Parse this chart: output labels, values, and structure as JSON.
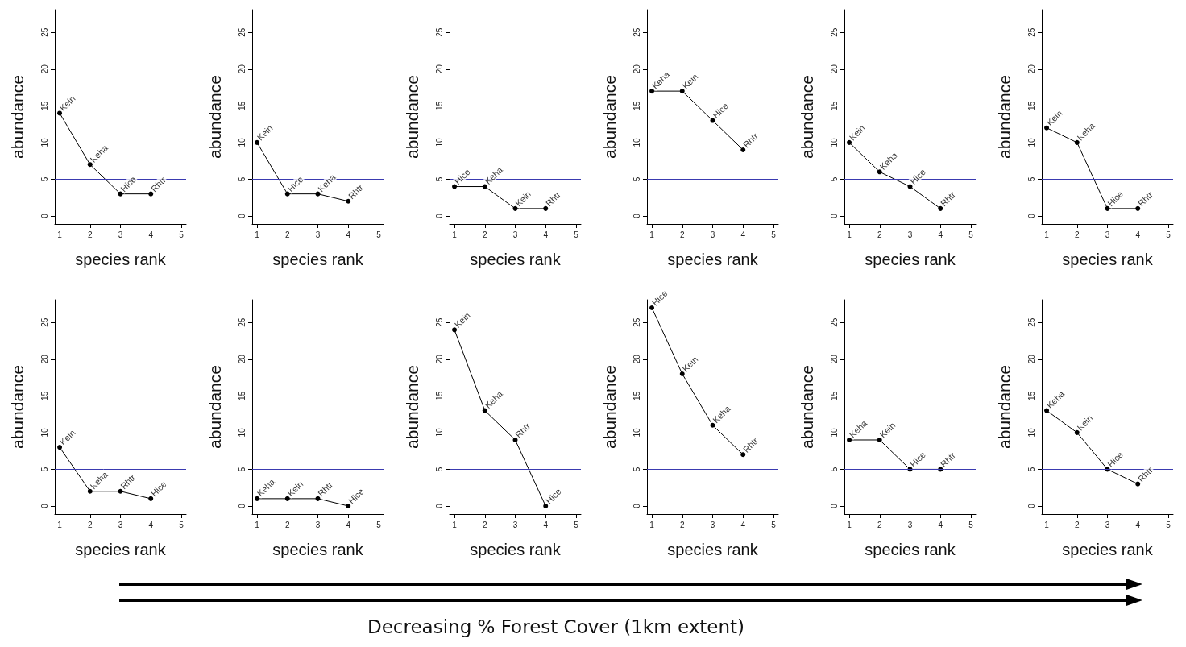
{
  "chart_data": [
    {
      "type": "line",
      "x": [
        1,
        2,
        3,
        4
      ],
      "values": [
        14,
        7,
        3,
        3
      ],
      "color": "#000000",
      "marker": "circle",
      "xlabel": "species rank",
      "ylabel": "abundance",
      "xlim": [
        0.84,
        5.16
      ],
      "xticks": [
        1,
        2,
        3,
        4,
        5
      ],
      "ylim": [
        -1.1,
        28.1
      ],
      "yticks": [
        0,
        5,
        10,
        15,
        20,
        25
      ],
      "ref_lines": [
        {
          "axis": "y",
          "value": 5,
          "color": "#3a3ab0"
        }
      ],
      "annotations": [
        {
          "text": "Kein",
          "x": 1,
          "y": 14
        },
        {
          "text": "Keha",
          "x": 2,
          "y": 7
        },
        {
          "text": "Hice",
          "x": 3,
          "y": 3
        },
        {
          "text": "Rhtr",
          "x": 4,
          "y": 3
        }
      ]
    },
    {
      "type": "line",
      "x": [
        1,
        2,
        3,
        4
      ],
      "values": [
        10,
        3,
        3,
        2
      ],
      "color": "#000000",
      "marker": "circle",
      "xlabel": "species rank",
      "ylabel": "abundance",
      "xlim": [
        0.84,
        5.16
      ],
      "xticks": [
        1,
        2,
        3,
        4,
        5
      ],
      "ylim": [
        -1.1,
        28.1
      ],
      "yticks": [
        0,
        5,
        10,
        15,
        20,
        25
      ],
      "ref_lines": [
        {
          "axis": "y",
          "value": 5,
          "color": "#3a3ab0"
        }
      ],
      "annotations": [
        {
          "text": "Kein",
          "x": 1,
          "y": 10
        },
        {
          "text": "Hice",
          "x": 2,
          "y": 3
        },
        {
          "text": "Keha",
          "x": 3,
          "y": 3
        },
        {
          "text": "Rhtr",
          "x": 4,
          "y": 2
        }
      ]
    },
    {
      "type": "line",
      "x": [
        1,
        2,
        3,
        4
      ],
      "values": [
        4,
        4,
        1,
        1
      ],
      "color": "#000000",
      "marker": "circle",
      "xlabel": "species rank",
      "ylabel": "abundance",
      "xlim": [
        0.84,
        5.16
      ],
      "xticks": [
        1,
        2,
        3,
        4,
        5
      ],
      "ylim": [
        -1.1,
        28.1
      ],
      "yticks": [
        0,
        5,
        10,
        15,
        20,
        25
      ],
      "ref_lines": [
        {
          "axis": "y",
          "value": 5,
          "color": "#3a3ab0"
        }
      ],
      "annotations": [
        {
          "text": "Hice",
          "x": 1,
          "y": 4
        },
        {
          "text": "Keha",
          "x": 2,
          "y": 4
        },
        {
          "text": "Kein",
          "x": 3,
          "y": 1
        },
        {
          "text": "Rhtr",
          "x": 4,
          "y": 1
        }
      ]
    },
    {
      "type": "line",
      "x": [
        1,
        2,
        3,
        4
      ],
      "values": [
        17,
        17,
        13,
        9
      ],
      "color": "#000000",
      "marker": "circle",
      "xlabel": "species rank",
      "ylabel": "abundance",
      "xlim": [
        0.84,
        5.16
      ],
      "xticks": [
        1,
        2,
        3,
        4,
        5
      ],
      "ylim": [
        -1.1,
        28.1
      ],
      "yticks": [
        0,
        5,
        10,
        15,
        20,
        25
      ],
      "ref_lines": [
        {
          "axis": "y",
          "value": 5,
          "color": "#3a3ab0"
        }
      ],
      "annotations": [
        {
          "text": "Keha",
          "x": 1,
          "y": 17
        },
        {
          "text": "Kein",
          "x": 2,
          "y": 17
        },
        {
          "text": "Hice",
          "x": 3,
          "y": 13
        },
        {
          "text": "Rhtr",
          "x": 4,
          "y": 9
        }
      ]
    },
    {
      "type": "line",
      "x": [
        1,
        2,
        3,
        4
      ],
      "values": [
        10,
        6,
        4,
        1
      ],
      "color": "#000000",
      "marker": "circle",
      "xlabel": "species rank",
      "ylabel": "abundance",
      "xlim": [
        0.84,
        5.16
      ],
      "xticks": [
        1,
        2,
        3,
        4,
        5
      ],
      "ylim": [
        -1.1,
        28.1
      ],
      "yticks": [
        0,
        5,
        10,
        15,
        20,
        25
      ],
      "ref_lines": [
        {
          "axis": "y",
          "value": 5,
          "color": "#3a3ab0"
        }
      ],
      "annotations": [
        {
          "text": "Kein",
          "x": 1,
          "y": 10
        },
        {
          "text": "Keha",
          "x": 2,
          "y": 6
        },
        {
          "text": "Hice",
          "x": 3,
          "y": 4
        },
        {
          "text": "Rhtr",
          "x": 4,
          "y": 1
        }
      ]
    },
    {
      "type": "line",
      "x": [
        1,
        2,
        3,
        4
      ],
      "values": [
        12,
        10,
        1,
        1
      ],
      "color": "#000000",
      "marker": "circle",
      "xlabel": "species rank",
      "ylabel": "abundance",
      "xlim": [
        0.84,
        5.16
      ],
      "xticks": [
        1,
        2,
        3,
        4,
        5
      ],
      "ylim": [
        -1.1,
        28.1
      ],
      "yticks": [
        0,
        5,
        10,
        15,
        20,
        25
      ],
      "ref_lines": [
        {
          "axis": "y",
          "value": 5,
          "color": "#3a3ab0"
        }
      ],
      "annotations": [
        {
          "text": "Kein",
          "x": 1,
          "y": 12
        },
        {
          "text": "Keha",
          "x": 2,
          "y": 10
        },
        {
          "text": "Hice",
          "x": 3,
          "y": 1
        },
        {
          "text": "Rhtr",
          "x": 4,
          "y": 1
        }
      ]
    },
    {
      "type": "line",
      "x": [
        1,
        2,
        3,
        4
      ],
      "values": [
        8,
        2,
        2,
        1
      ],
      "color": "#000000",
      "marker": "circle",
      "xlabel": "species rank",
      "ylabel": "abundance",
      "xlim": [
        0.84,
        5.16
      ],
      "xticks": [
        1,
        2,
        3,
        4,
        5
      ],
      "ylim": [
        -1.1,
        28.1
      ],
      "yticks": [
        0,
        5,
        10,
        15,
        20,
        25
      ],
      "ref_lines": [
        {
          "axis": "y",
          "value": 5,
          "color": "#3a3ab0"
        }
      ],
      "annotations": [
        {
          "text": "Kein",
          "x": 1,
          "y": 8
        },
        {
          "text": "Keha",
          "x": 2,
          "y": 2
        },
        {
          "text": "Rhtr",
          "x": 3,
          "y": 2
        },
        {
          "text": "Hice",
          "x": 4,
          "y": 1
        }
      ]
    },
    {
      "type": "line",
      "x": [
        1,
        2,
        3,
        4
      ],
      "values": [
        1,
        1,
        1,
        0
      ],
      "color": "#000000",
      "marker": "circle",
      "xlabel": "species rank",
      "ylabel": "abundance",
      "xlim": [
        0.84,
        5.16
      ],
      "xticks": [
        1,
        2,
        3,
        4,
        5
      ],
      "ylim": [
        -1.1,
        28.1
      ],
      "yticks": [
        0,
        5,
        10,
        15,
        20,
        25
      ],
      "ref_lines": [
        {
          "axis": "y",
          "value": 5,
          "color": "#3a3ab0"
        }
      ],
      "annotations": [
        {
          "text": "Keha",
          "x": 1,
          "y": 1
        },
        {
          "text": "Kein",
          "x": 2,
          "y": 1
        },
        {
          "text": "Rhtr",
          "x": 3,
          "y": 1
        },
        {
          "text": "Hice",
          "x": 4,
          "y": 0
        }
      ]
    },
    {
      "type": "line",
      "x": [
        1,
        2,
        3,
        4
      ],
      "values": [
        24,
        13,
        9,
        0
      ],
      "color": "#000000",
      "marker": "circle",
      "xlabel": "species rank",
      "ylabel": "abundance",
      "xlim": [
        0.84,
        5.16
      ],
      "xticks": [
        1,
        2,
        3,
        4,
        5
      ],
      "ylim": [
        -1.1,
        28.1
      ],
      "yticks": [
        0,
        5,
        10,
        15,
        20,
        25
      ],
      "ref_lines": [
        {
          "axis": "y",
          "value": 5,
          "color": "#3a3ab0"
        }
      ],
      "annotations": [
        {
          "text": "Kein",
          "x": 1,
          "y": 24
        },
        {
          "text": "Keha",
          "x": 2,
          "y": 13
        },
        {
          "text": "Rhtr",
          "x": 3,
          "y": 9
        },
        {
          "text": "Hice",
          "x": 4,
          "y": 0
        }
      ]
    },
    {
      "type": "line",
      "x": [
        1,
        2,
        3,
        4
      ],
      "values": [
        27,
        18,
        11,
        7
      ],
      "color": "#000000",
      "marker": "circle",
      "xlabel": "species rank",
      "ylabel": "abundance",
      "xlim": [
        0.84,
        5.16
      ],
      "xticks": [
        1,
        2,
        3,
        4,
        5
      ],
      "ylim": [
        -1.1,
        28.1
      ],
      "yticks": [
        0,
        5,
        10,
        15,
        20,
        25
      ],
      "ref_lines": [
        {
          "axis": "y",
          "value": 5,
          "color": "#3a3ab0"
        }
      ],
      "annotations": [
        {
          "text": "Hice",
          "x": 1,
          "y": 27
        },
        {
          "text": "Kein",
          "x": 2,
          "y": 18
        },
        {
          "text": "Keha",
          "x": 3,
          "y": 11
        },
        {
          "text": "Rhtr",
          "x": 4,
          "y": 7
        }
      ]
    },
    {
      "type": "line",
      "x": [
        1,
        2,
        3,
        4
      ],
      "values": [
        9,
        9,
        5,
        5
      ],
      "color": "#000000",
      "marker": "circle",
      "xlabel": "species rank",
      "ylabel": "abundance",
      "xlim": [
        0.84,
        5.16
      ],
      "xticks": [
        1,
        2,
        3,
        4,
        5
      ],
      "ylim": [
        -1.1,
        28.1
      ],
      "yticks": [
        0,
        5,
        10,
        15,
        20,
        25
      ],
      "ref_lines": [
        {
          "axis": "y",
          "value": 5,
          "color": "#3a3ab0"
        }
      ],
      "annotations": [
        {
          "text": "Keha",
          "x": 1,
          "y": 9
        },
        {
          "text": "Kein",
          "x": 2,
          "y": 9
        },
        {
          "text": "Hice",
          "x": 3,
          "y": 5
        },
        {
          "text": "Rhtr",
          "x": 4,
          "y": 5
        }
      ]
    },
    {
      "type": "line",
      "x": [
        1,
        2,
        3,
        4
      ],
      "values": [
        13,
        10,
        5,
        3
      ],
      "color": "#000000",
      "marker": "circle",
      "xlabel": "species rank",
      "ylabel": "abundance",
      "xlim": [
        0.84,
        5.16
      ],
      "xticks": [
        1,
        2,
        3,
        4,
        5
      ],
      "ylim": [
        -1.1,
        28.1
      ],
      "yticks": [
        0,
        5,
        10,
        15,
        20,
        25
      ],
      "ref_lines": [
        {
          "axis": "y",
          "value": 5,
          "color": "#3a3ab0"
        }
      ],
      "annotations": [
        {
          "text": "Keha",
          "x": 1,
          "y": 13
        },
        {
          "text": "Kein",
          "x": 2,
          "y": 10
        },
        {
          "text": "Hice",
          "x": 3,
          "y": 5
        },
        {
          "text": "Rhtr",
          "x": 4,
          "y": 3
        }
      ]
    },
    {
      "type": "other",
      "annotations": [
        "Decreasing % Forest Cover (1km extent)"
      ]
    }
  ]
}
